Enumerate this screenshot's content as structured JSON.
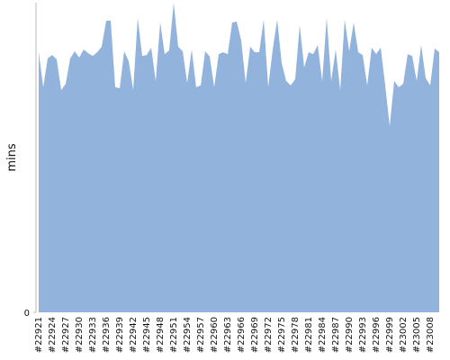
{
  "chart_data": {
    "type": "area",
    "y_label": "mins",
    "color": "#92b4dc",
    "categories": [
      "#22921",
      null,
      null,
      "#22924",
      null,
      null,
      "#22927",
      null,
      null,
      "#22930",
      null,
      null,
      "#22933",
      null,
      null,
      "#22936",
      null,
      null,
      "#22939",
      null,
      null,
      "#22942",
      null,
      null,
      "#22945",
      null,
      null,
      "#22948",
      null,
      null,
      "#22951",
      null,
      null,
      "#22954",
      null,
      null,
      "#22957",
      null,
      null,
      "#22960",
      null,
      null,
      "#22963",
      null,
      null,
      "#22966",
      null,
      null,
      "#22969",
      null,
      null,
      "#22972",
      null,
      null,
      "#22975",
      null,
      null,
      "#22978",
      null,
      null,
      "#22981",
      null,
      null,
      "#22984",
      null,
      null,
      "#22987",
      null,
      null,
      "#22990",
      null,
      null,
      "#22993",
      null,
      null,
      "#22996",
      null,
      null,
      "#22999",
      null,
      null,
      "#23002",
      null,
      null,
      "#23005",
      null,
      null,
      "#23008",
      null,
      null
    ],
    "values": [
      84.0,
      72.7,
      82.0,
      83.1,
      81.7,
      71.8,
      73.8,
      82.0,
      84.3,
      82.3,
      84.9,
      83.7,
      82.8,
      84.0,
      85.8,
      94.2,
      94.2,
      72.7,
      72.4,
      84.3,
      81.1,
      71.8,
      95.1,
      82.8,
      83.1,
      85.5,
      74.7,
      93.6,
      83.4,
      84.6,
      100,
      85.8,
      84.3,
      74.1,
      84.9,
      72.7,
      73.3,
      84.3,
      82.6,
      72.7,
      83.4,
      84.0,
      83.4,
      93.6,
      93.9,
      87.8,
      74.1,
      85.8,
      84.0,
      84.0,
      94.5,
      72.7,
      84.9,
      94.5,
      80.5,
      74.7,
      73.3,
      75.3,
      92.7,
      79.1,
      84.0,
      83.4,
      86.3,
      74.7,
      95.1,
      74.7,
      84.9,
      71.8,
      94.5,
      84.3,
      93.6,
      84.0,
      83.1,
      73.3,
      85.5,
      83.4,
      85.5,
      73.3,
      60.2,
      74.7,
      72.7,
      73.8,
      83.4,
      82.8,
      74.7,
      86.3,
      75.6,
      73.3,
      85.2,
      84.0
    ],
    "ylim": [
      0,
      100
    ],
    "yticks": [
      0
    ]
  }
}
